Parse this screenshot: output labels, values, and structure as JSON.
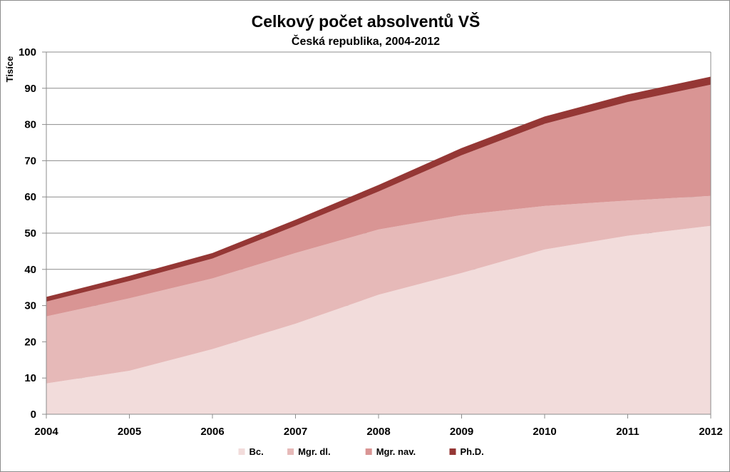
{
  "chart_data": {
    "type": "area",
    "stacked": true,
    "title": "Celkový počet absolventů VŠ",
    "subtitle": "Česká republika, 2004-2012",
    "ylabel": "Tisíce",
    "xlabel": "",
    "x": [
      "2004",
      "2005",
      "2006",
      "2007",
      "2008",
      "2009",
      "2010",
      "2011",
      "2012"
    ],
    "ylim": [
      0,
      100
    ],
    "yticks": [
      0,
      10,
      20,
      30,
      40,
      50,
      60,
      70,
      80,
      90,
      100
    ],
    "grid": true,
    "legend": "bottom",
    "series": [
      {
        "name": "Bc.",
        "color": "#f2dcdb",
        "values": [
          8.5,
          12,
          18,
          25,
          33,
          39,
          45.5,
          49.3,
          52
        ]
      },
      {
        "name": "Mgr. dl.",
        "color": "#e6b9b8",
        "values": [
          18.5,
          20,
          19.5,
          19.5,
          18,
          16,
          12,
          9.7,
          8.3
        ]
      },
      {
        "name": "Mgr. nav.",
        "color": "#d99594",
        "values": [
          4.1,
          4.8,
          5.5,
          7.5,
          10.5,
          16.5,
          22.7,
          27.2,
          30.7
        ]
      },
      {
        "name": "Ph.D.",
        "color": "#953735",
        "values": [
          1.3,
          1.4,
          1.5,
          1.7,
          1.8,
          2,
          2,
          2.1,
          2.2
        ]
      }
    ]
  }
}
